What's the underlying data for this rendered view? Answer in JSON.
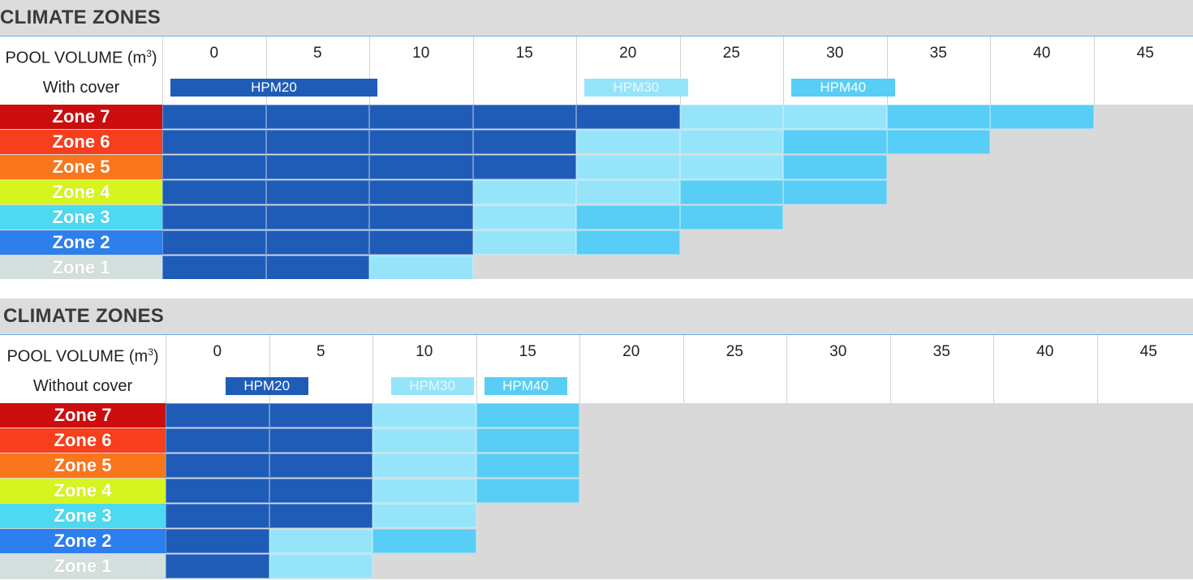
{
  "colors": {
    "HPM20": "#1f5cb8",
    "HPM30": "#96e4fa",
    "HPM40": "#58cdf5",
    "Zone 7": "#cc0d0d",
    "Zone 6": "#f73f1d",
    "Zone 5": "#fa761c",
    "Zone 4": "#d6f51e",
    "Zone 3": "#4dd9f0",
    "Zone 2": "#2d7fee",
    "Zone 1": "#d2dfdd"
  },
  "chart_data": [
    {
      "type": "heatmap",
      "title": "CLIMATE ZONES",
      "xlabel": "POOL VOLUME (m",
      "xlabel_sup": "3",
      "xlabel_close": ")",
      "x": [
        "0",
        "5",
        "10",
        "15",
        "20",
        "25",
        "30",
        "35",
        "40",
        "45"
      ],
      "condition": "With cover",
      "models": [
        {
          "name": "HPM20",
          "range": [
            0,
            10
          ]
        },
        {
          "name": "HPM30",
          "range": [
            20,
            25
          ]
        },
        {
          "name": "HPM40",
          "range": [
            30,
            35
          ]
        }
      ],
      "zones": [
        "Zone 7",
        "Zone 6",
        "Zone 5",
        "Zone 4",
        "Zone 3",
        "Zone 2",
        "Zone 1"
      ],
      "matrix": [
        [
          "HPM20",
          "HPM20",
          "HPM20",
          "HPM20",
          "HPM20",
          "HPM30",
          "HPM30",
          "HPM40",
          "HPM40"
        ],
        [
          "HPM20",
          "HPM20",
          "HPM20",
          "HPM20",
          "HPM30",
          "HPM30",
          "HPM40",
          "HPM40",
          null
        ],
        [
          "HPM20",
          "HPM20",
          "HPM20",
          "HPM20",
          "HPM30",
          "HPM30",
          "HPM40",
          null,
          null
        ],
        [
          "HPM20",
          "HPM20",
          "HPM20",
          "HPM30",
          "HPM30",
          "HPM40",
          "HPM40",
          null,
          null
        ],
        [
          "HPM20",
          "HPM20",
          "HPM20",
          "HPM30",
          "HPM40",
          "HPM40",
          null,
          null,
          null
        ],
        [
          "HPM20",
          "HPM20",
          "HPM20",
          "HPM30",
          "HPM40",
          null,
          null,
          null,
          null
        ],
        [
          "HPM20",
          "HPM20",
          "HPM30",
          null,
          null,
          null,
          null,
          null,
          null
        ]
      ]
    },
    {
      "type": "heatmap",
      "title": "CLIMATE ZONES",
      "xlabel": "POOL VOLUME (m",
      "xlabel_sup": "3",
      "xlabel_close": ")",
      "x": [
        "0",
        "5",
        "10",
        "15",
        "20",
        "25",
        "30",
        "35",
        "40",
        "45"
      ],
      "condition": "Without cover",
      "models": [
        {
          "name": "HPM20",
          "range": [
            2.5,
            6.5
          ]
        },
        {
          "name": "HPM30",
          "range": [
            10.5,
            14.5
          ]
        },
        {
          "name": "HPM40",
          "range": [
            15,
            19
          ]
        }
      ],
      "zones": [
        "Zone 7",
        "Zone 6",
        "Zone 5",
        "Zone 4",
        "Zone 3",
        "Zone 2",
        "Zone 1"
      ],
      "matrix": [
        [
          "HPM20",
          "HPM20",
          "HPM30",
          "HPM40",
          null,
          null,
          null,
          null,
          null
        ],
        [
          "HPM20",
          "HPM20",
          "HPM30",
          "HPM40",
          null,
          null,
          null,
          null,
          null
        ],
        [
          "HPM20",
          "HPM20",
          "HPM30",
          "HPM40",
          null,
          null,
          null,
          null,
          null
        ],
        [
          "HPM20",
          "HPM20",
          "HPM30",
          "HPM40",
          null,
          null,
          null,
          null,
          null
        ],
        [
          "HPM20",
          "HPM20",
          "HPM30",
          null,
          null,
          null,
          null,
          null,
          null
        ],
        [
          "HPM20",
          "HPM30",
          "HPM40",
          null,
          null,
          null,
          null,
          null,
          null
        ],
        [
          "HPM20",
          "HPM30",
          null,
          null,
          null,
          null,
          null,
          null,
          null
        ]
      ]
    }
  ]
}
